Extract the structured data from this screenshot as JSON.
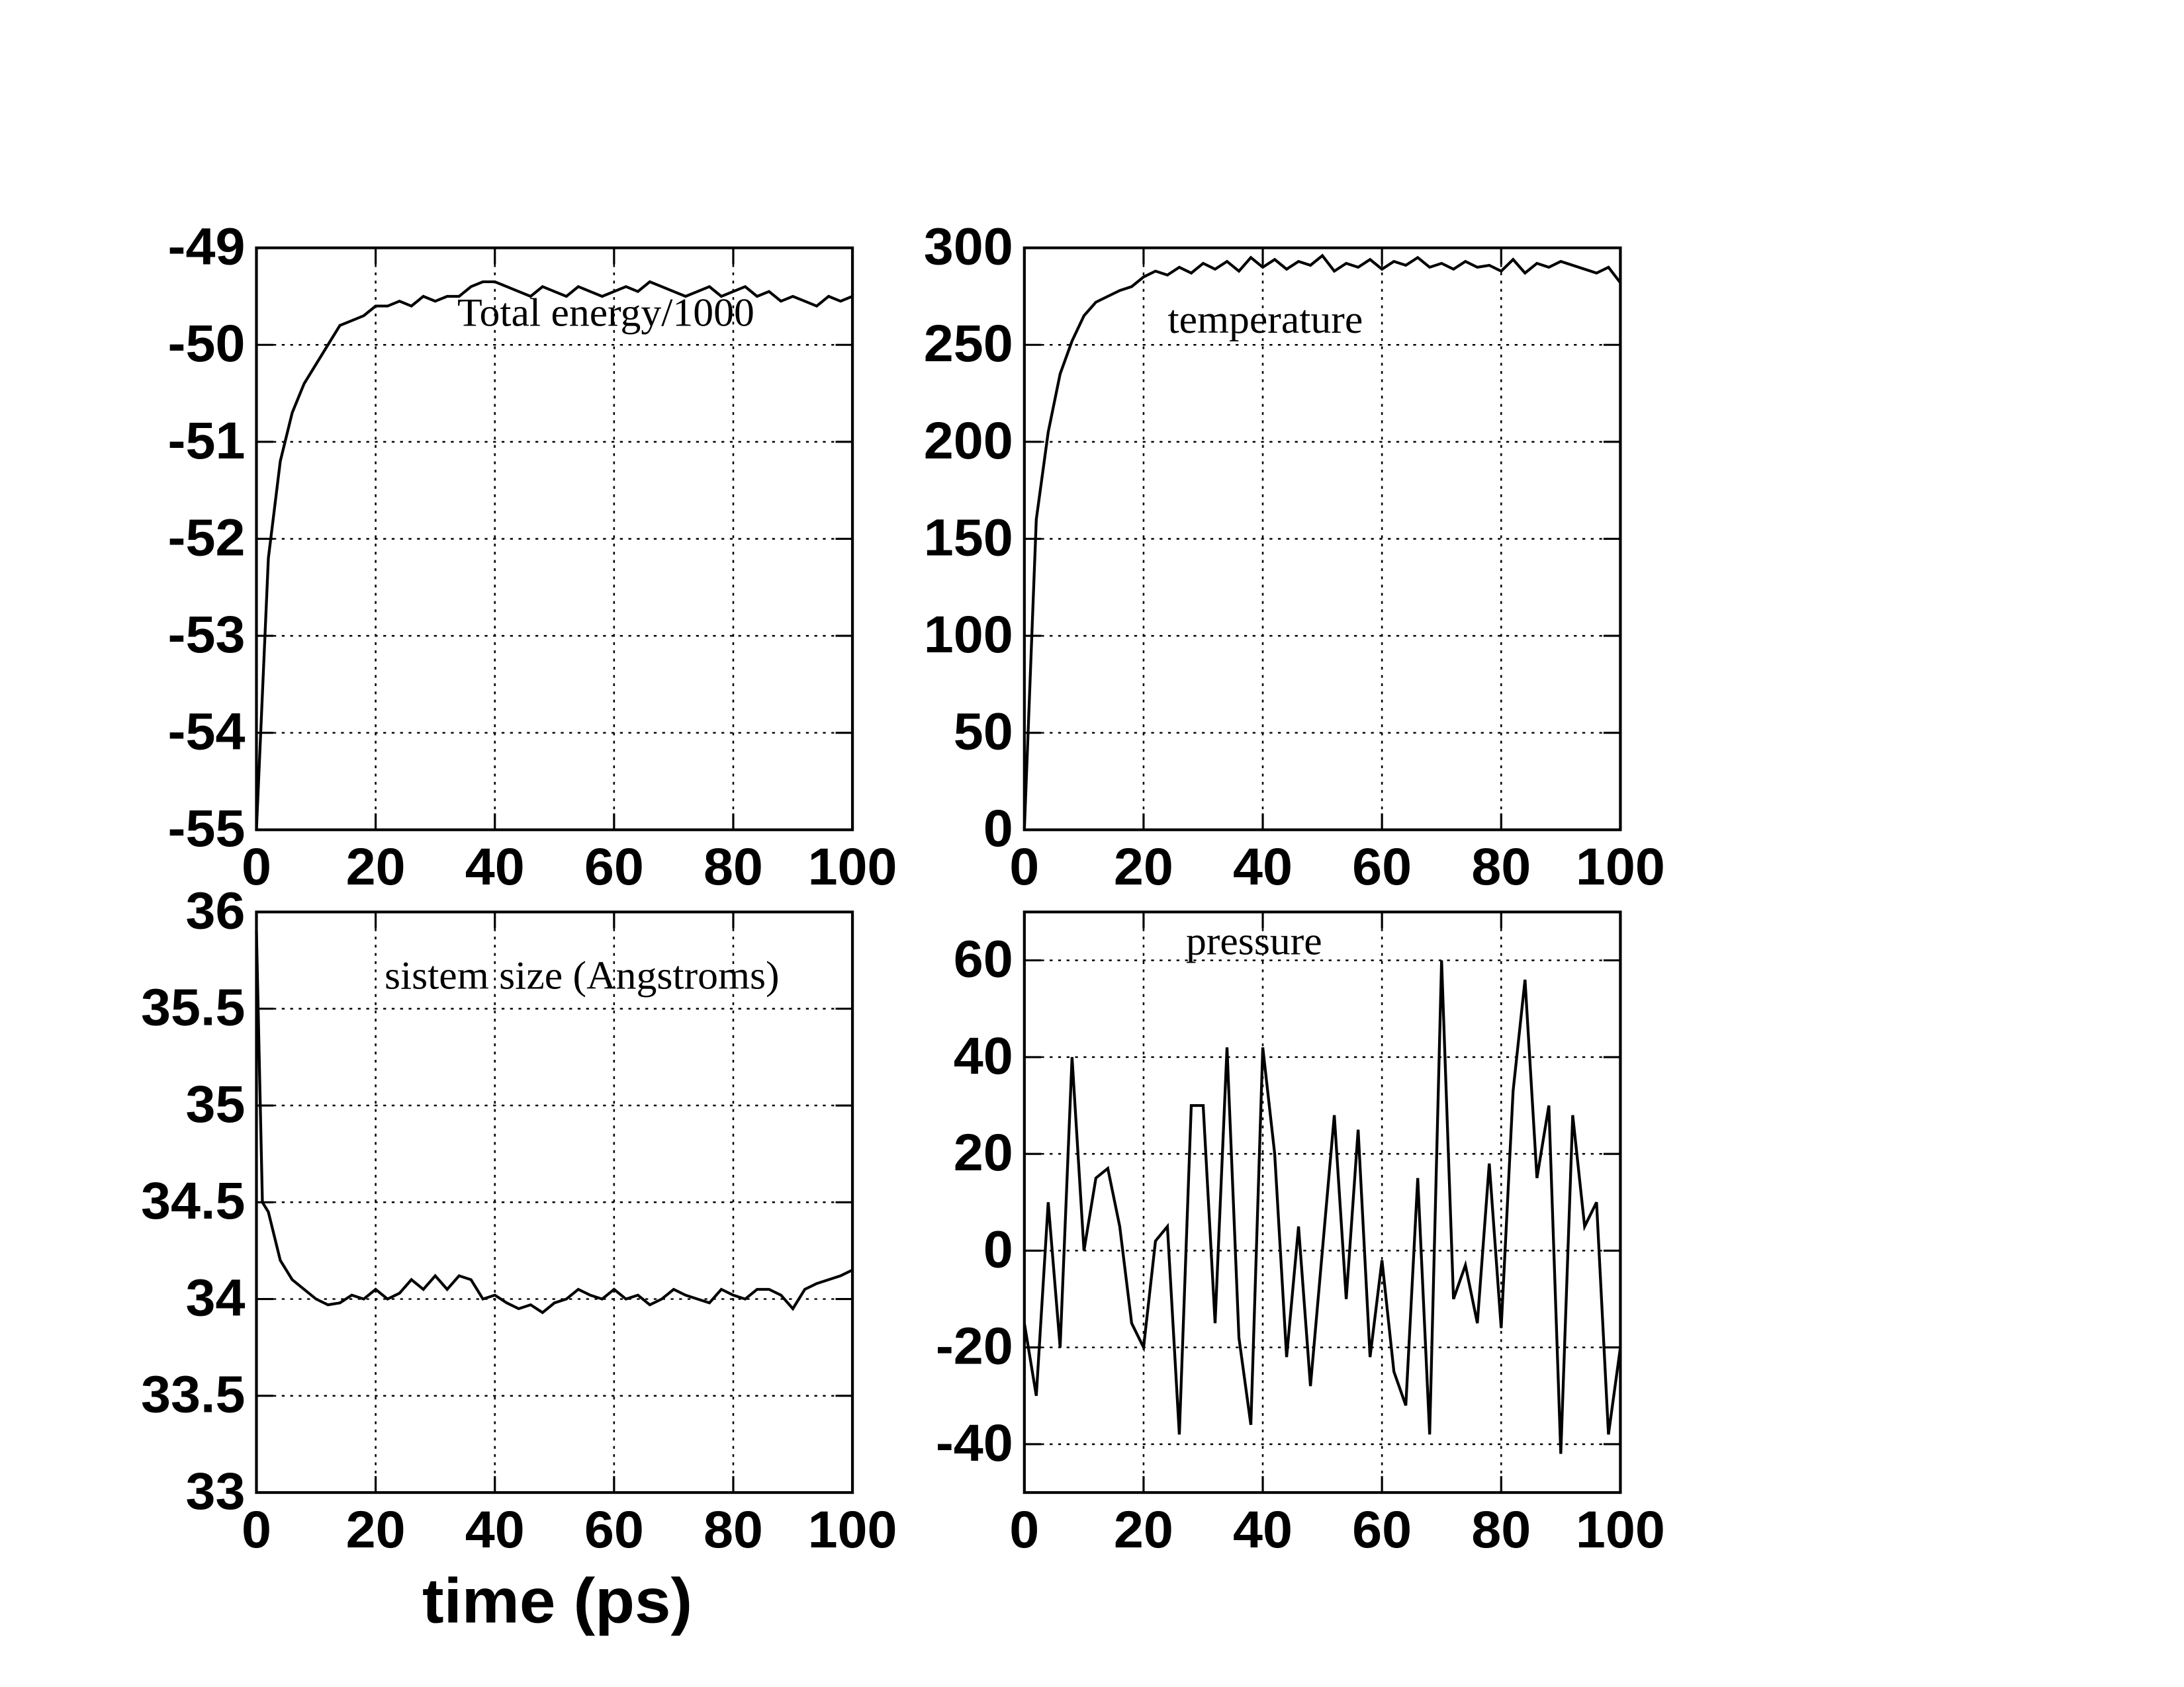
{
  "chart_data": [
    {
      "type": "line",
      "annotation": "Total energy/1000",
      "x": [
        0,
        2,
        4,
        6,
        8,
        10,
        12,
        14,
        16,
        18,
        20,
        22,
        24,
        26,
        28,
        30,
        32,
        34,
        36,
        38,
        40,
        42,
        44,
        46,
        48,
        50,
        52,
        54,
        56,
        58,
        60,
        62,
        64,
        66,
        68,
        70,
        72,
        74,
        76,
        78,
        80,
        82,
        84,
        86,
        88,
        90,
        92,
        94,
        96,
        98,
        100
      ],
      "values": [
        -55,
        -52.2,
        -51.2,
        -50.7,
        -50.4,
        -50.2,
        -50.0,
        -49.8,
        -49.75,
        -49.7,
        -49.6,
        -49.6,
        -49.55,
        -49.6,
        -49.5,
        -49.55,
        -49.5,
        -49.5,
        -49.4,
        -49.35,
        -49.35,
        -49.4,
        -49.45,
        -49.5,
        -49.4,
        -49.45,
        -49.5,
        -49.4,
        -49.45,
        -49.5,
        -49.45,
        -49.4,
        -49.45,
        -49.35,
        -49.4,
        -49.45,
        -49.5,
        -49.45,
        -49.4,
        -49.5,
        -49.45,
        -49.4,
        -49.5,
        -49.45,
        -49.55,
        -49.5,
        -49.55,
        -49.6,
        -49.5,
        -49.55,
        -49.5
      ],
      "color": "#000000",
      "xlim": [
        0,
        100
      ],
      "xticks": [
        0,
        20,
        40,
        60,
        80,
        100
      ],
      "ylim": [
        -55,
        -49
      ],
      "yticks": [
        -55,
        -54,
        -53,
        -52,
        -51,
        -50,
        -49
      ],
      "grid": true
    },
    {
      "type": "line",
      "annotation": "temperature",
      "x": [
        0,
        2,
        4,
        6,
        8,
        10,
        12,
        14,
        16,
        18,
        20,
        22,
        24,
        26,
        28,
        30,
        32,
        34,
        36,
        38,
        40,
        42,
        44,
        46,
        48,
        50,
        52,
        54,
        56,
        58,
        60,
        62,
        64,
        66,
        68,
        70,
        72,
        74,
        76,
        78,
        80,
        82,
        84,
        86,
        88,
        90,
        92,
        94,
        96,
        98,
        100
      ],
      "values": [
        0,
        160,
        205,
        235,
        252,
        265,
        272,
        275,
        278,
        280,
        285,
        288,
        286,
        290,
        287,
        292,
        289,
        293,
        288,
        295,
        290,
        294,
        289,
        293,
        291,
        296,
        288,
        292,
        290,
        294,
        289,
        293,
        291,
        295,
        290,
        292,
        289,
        293,
        290,
        291,
        288,
        294,
        287,
        292,
        290,
        293,
        291,
        289,
        287,
        290,
        282
      ],
      "color": "#000000",
      "xlim": [
        0,
        100
      ],
      "xticks": [
        0,
        20,
        40,
        60,
        80,
        100
      ],
      "ylim": [
        0,
        300
      ],
      "yticks": [
        0,
        50,
        100,
        150,
        200,
        250,
        300
      ],
      "grid": true
    },
    {
      "type": "line",
      "annotation": "sistem size (Angstroms)",
      "x_label": "time (ps)",
      "x": [
        0,
        1,
        2,
        4,
        6,
        8,
        10,
        12,
        14,
        16,
        18,
        20,
        22,
        24,
        26,
        28,
        30,
        32,
        34,
        36,
        38,
        40,
        42,
        44,
        46,
        48,
        50,
        52,
        54,
        56,
        58,
        60,
        62,
        64,
        66,
        68,
        70,
        72,
        74,
        76,
        78,
        80,
        82,
        84,
        86,
        88,
        90,
        92,
        94,
        96,
        98,
        100
      ],
      "values": [
        35.9,
        34.5,
        34.45,
        34.2,
        34.1,
        34.05,
        34.0,
        33.97,
        33.98,
        34.02,
        34.0,
        34.05,
        34.0,
        34.03,
        34.1,
        34.05,
        34.12,
        34.05,
        34.12,
        34.1,
        34.0,
        34.02,
        33.98,
        33.95,
        33.97,
        33.93,
        33.98,
        34.0,
        34.05,
        34.02,
        34.0,
        34.05,
        34.0,
        34.02,
        33.97,
        34.0,
        34.05,
        34.02,
        34.0,
        33.98,
        34.05,
        34.02,
        34.0,
        34.05,
        34.05,
        34.02,
        33.95,
        34.05,
        34.08,
        34.1,
        34.12,
        34.15
      ],
      "color": "#000000",
      "xlim": [
        0,
        100
      ],
      "xticks": [
        0,
        20,
        40,
        60,
        80,
        100
      ],
      "ylim": [
        33,
        36
      ],
      "yticks": [
        33,
        33.5,
        34,
        34.5,
        35,
        35.5,
        36
      ],
      "grid": true
    },
    {
      "type": "line",
      "annotation": "pressure",
      "x": [
        0,
        2,
        4,
        6,
        8,
        10,
        12,
        14,
        16,
        18,
        20,
        22,
        24,
        26,
        28,
        30,
        32,
        34,
        36,
        38,
        40,
        42,
        44,
        46,
        48,
        50,
        52,
        54,
        56,
        58,
        60,
        62,
        64,
        66,
        68,
        70,
        72,
        74,
        76,
        78,
        80,
        82,
        84,
        86,
        88,
        90,
        92,
        94,
        96,
        98,
        100
      ],
      "values": [
        -15,
        -30,
        10,
        -20,
        40,
        0,
        15,
        17,
        5,
        -15,
        -20,
        2,
        5,
        -38,
        30,
        30,
        -15,
        42,
        -18,
        -36,
        42,
        20,
        -22,
        5,
        -28,
        0,
        28,
        -10,
        25,
        -22,
        -2,
        -25,
        -32,
        15,
        -38,
        60,
        -10,
        -3,
        -15,
        18,
        -16,
        33,
        56,
        15,
        30,
        -42,
        28,
        5,
        10,
        -38,
        -20
      ],
      "color": "#000000",
      "xlim": [
        0,
        100
      ],
      "xticks": [
        0,
        20,
        40,
        60,
        80,
        100
      ],
      "ylim": [
        -50,
        70
      ],
      "yticks": [
        -40,
        -20,
        0,
        20,
        40,
        60
      ],
      "grid": true
    }
  ]
}
